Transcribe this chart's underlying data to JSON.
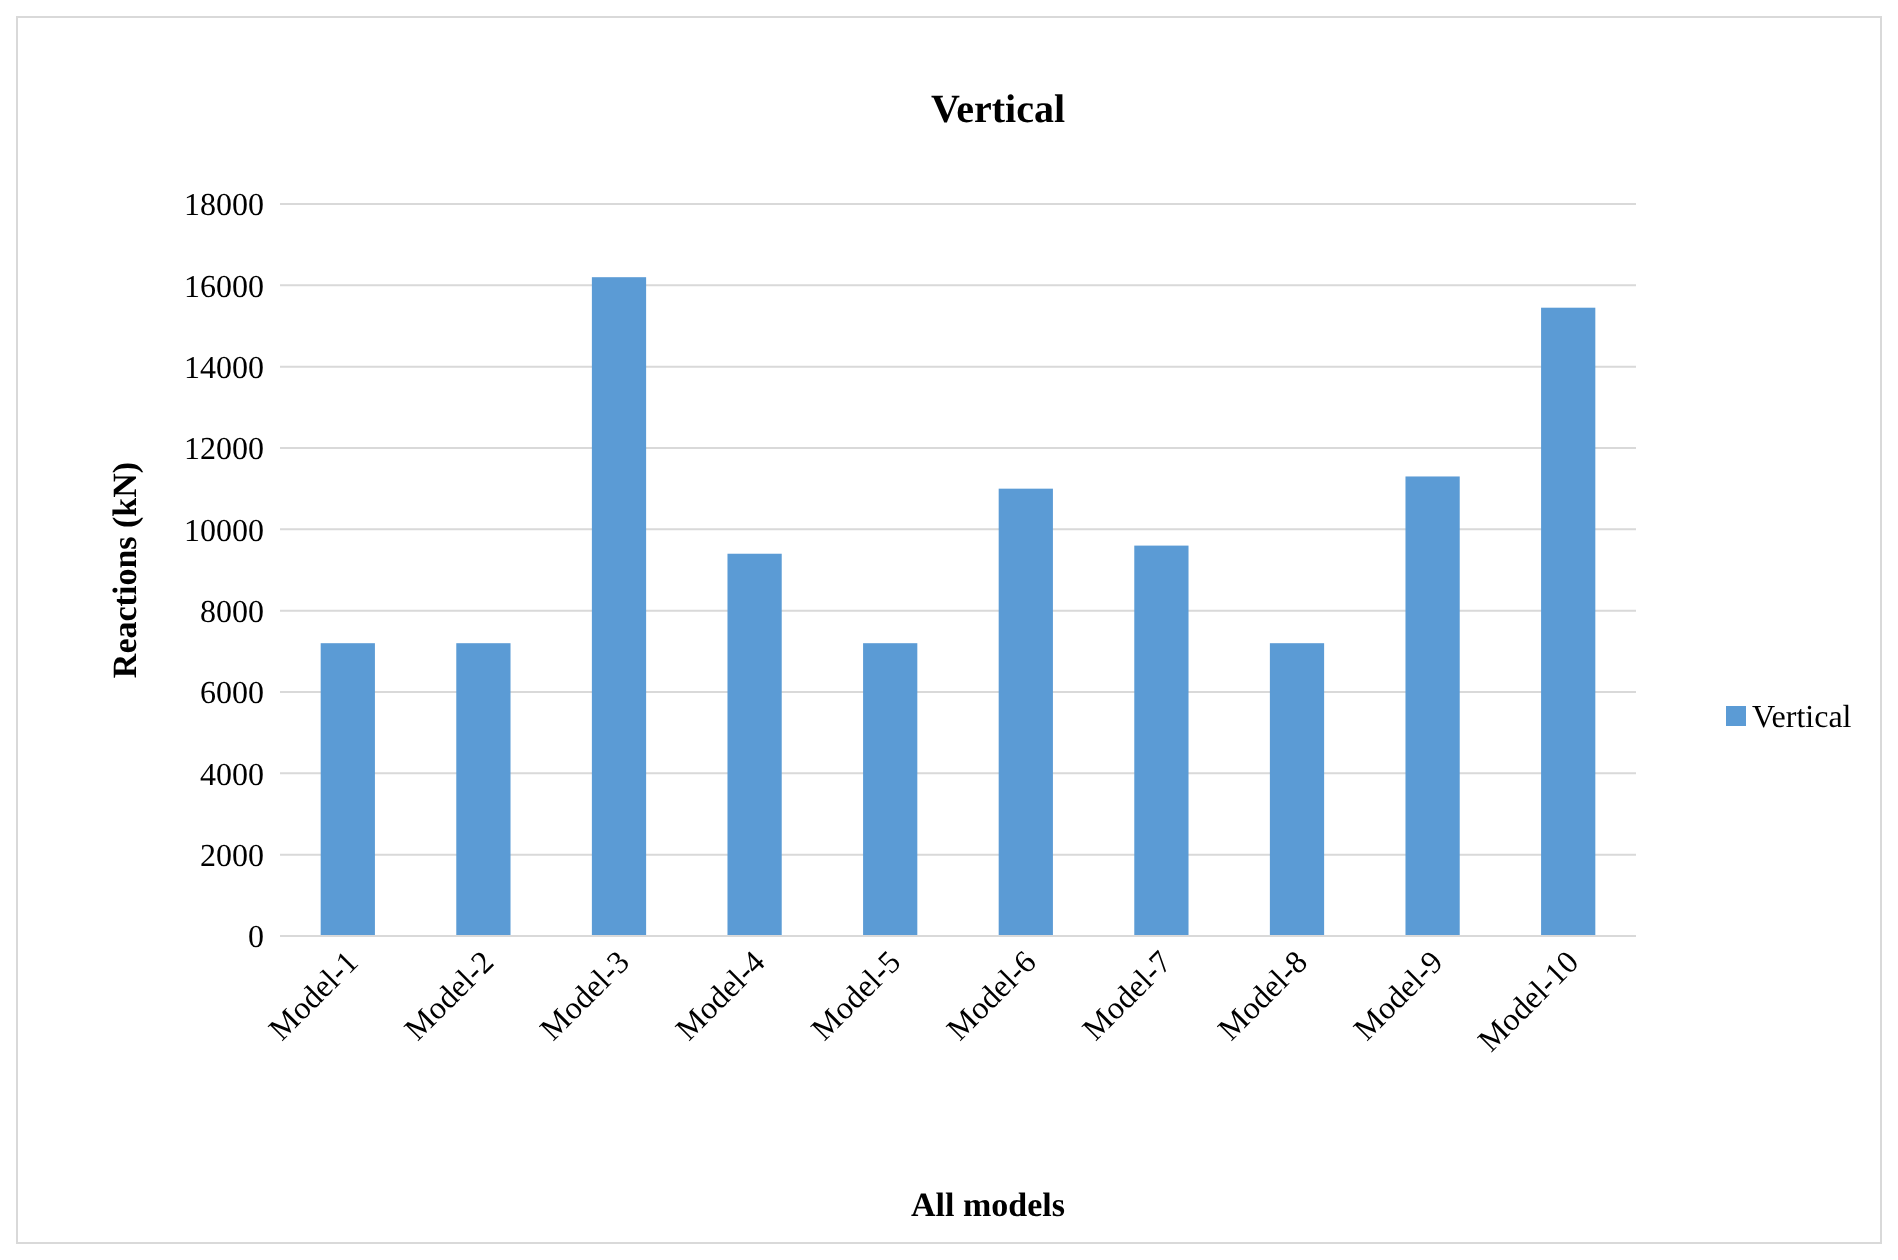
{
  "chart_data": {
    "type": "bar",
    "title": "Vertical",
    "xlabel": "All models",
    "ylabel": "Reactions (kN)",
    "categories": [
      "Model-1",
      "Model-2",
      "Model-3",
      "Model-4",
      "Model-5",
      "Model-6",
      "Model-7",
      "Model-8",
      "Model-9",
      "Model-10"
    ],
    "series": [
      {
        "name": "Vertical",
        "color": "#5b9bd5",
        "values": [
          7200,
          7200,
          16200,
          9400,
          7200,
          11000,
          9600,
          7200,
          11300,
          15450
        ]
      }
    ],
    "ylim": [
      0,
      18000
    ],
    "yticks": [
      0,
      2000,
      4000,
      6000,
      8000,
      10000,
      12000,
      14000,
      16000,
      18000
    ],
    "grid": "y",
    "legend": "right"
  }
}
